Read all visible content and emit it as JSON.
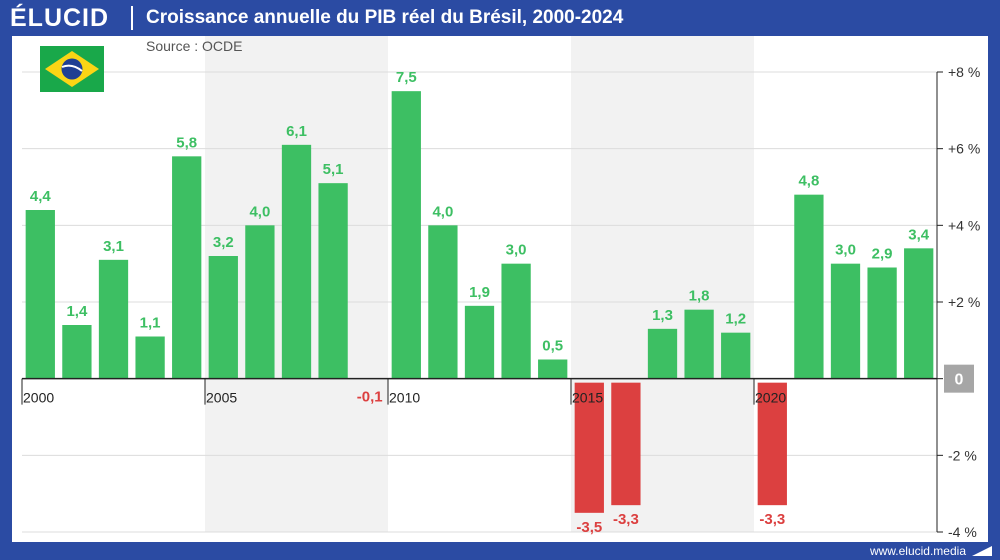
{
  "header": {
    "logo": "ÉLUCID",
    "title": "Croissance annuelle du PIB réel du Brésil, 2000-2024"
  },
  "source": "Source : OCDE",
  "footer": {
    "site": "www.elucid.media"
  },
  "colors": {
    "positive": "#3dbf63",
    "negative": "#dc4040",
    "frame": "#2b4ba3",
    "zero_badge": "#a6a6a6"
  },
  "icons": {
    "flag": "brazil-flag-icon"
  },
  "chart_data": {
    "type": "bar",
    "categories": [
      "2000",
      "2001",
      "2002",
      "2003",
      "2004",
      "2005",
      "2006",
      "2007",
      "2008",
      "2009",
      "2010",
      "2011",
      "2012",
      "2013",
      "2014",
      "2015",
      "2016",
      "2017",
      "2018",
      "2019",
      "2020",
      "2021",
      "2022",
      "2023",
      "2024"
    ],
    "values": [
      4.4,
      1.4,
      3.1,
      1.1,
      5.8,
      3.2,
      4.0,
      6.1,
      5.1,
      -0.1,
      7.5,
      4.0,
      1.9,
      3.0,
      0.5,
      -3.5,
      -3.3,
      1.3,
      1.8,
      1.2,
      -3.3,
      4.8,
      3.0,
      2.9,
      3.4
    ],
    "value_labels": [
      "4,4",
      "1,4",
      "3,1",
      "1,1",
      "5,8",
      "3,2",
      "4,0",
      "6,1",
      "5,1",
      "-0,1",
      "7,5",
      "4,0",
      "1,9",
      "3,0",
      "0,5",
      "-3,5",
      "-3,3",
      "1,3",
      "1,8",
      "1,2",
      "-3,3",
      "4,8",
      "3,0",
      "2,9",
      "3,4"
    ],
    "x_tick_labels": [
      "2000",
      "2005",
      "2010",
      "2015",
      "2020"
    ],
    "y_ticks": [
      8,
      6,
      4,
      2,
      0,
      -2,
      -4
    ],
    "y_tick_labels": [
      "+8 %",
      "+6 %",
      "+4 %",
      "+2 %",
      "0",
      "-2 %",
      "-4 %"
    ],
    "ylim": [
      -4,
      8
    ],
    "title": "Croissance annuelle du PIB réel du Brésil, 2000-2024",
    "xlabel": "",
    "ylabel": "",
    "grid": true,
    "legend": "none"
  }
}
